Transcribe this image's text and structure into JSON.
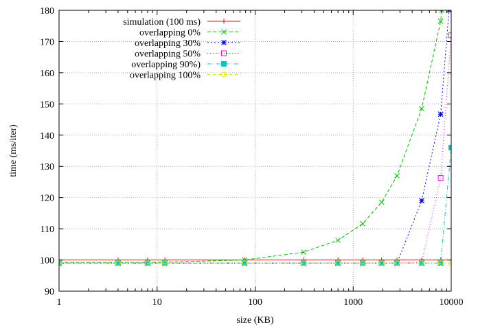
{
  "chart_data": {
    "type": "line",
    "xlabel": "size (KB)",
    "ylabel": "time (ms/iter)",
    "xscale": "log",
    "xlim": [
      1,
      10000
    ],
    "ylim": [
      90,
      180
    ],
    "x_ticks": [
      1,
      10,
      100,
      1000,
      10000
    ],
    "x_tick_labels": [
      "1",
      "10",
      "100",
      "1000",
      "10000"
    ],
    "y_ticks": [
      90,
      100,
      110,
      120,
      130,
      140,
      150,
      160,
      170,
      180
    ],
    "y_tick_labels": [
      "90",
      "100",
      "110",
      "120",
      "130",
      "140",
      "150",
      "160",
      "170",
      "180"
    ],
    "grid": true,
    "legend_position": "top-left",
    "series": [
      {
        "name": "simulation (100 ms)",
        "color": "#ff0000",
        "dash": "",
        "marker": "plus",
        "points": [
          [
            1,
            100
          ],
          [
            4,
            100
          ],
          [
            8,
            100
          ],
          [
            12,
            100
          ],
          [
            78,
            100
          ],
          [
            312,
            100
          ],
          [
            700,
            100
          ],
          [
            1250,
            100
          ],
          [
            1950,
            100
          ],
          [
            2800,
            100
          ],
          [
            5000,
            100
          ],
          [
            7800,
            100
          ],
          [
            10000,
            100
          ]
        ]
      },
      {
        "name": "overlapping 0%",
        "color": "#00c000",
        "dash": "5,3",
        "marker": "x",
        "points": [
          [
            1,
            99.2
          ],
          [
            4,
            99.2
          ],
          [
            8,
            99.2
          ],
          [
            12,
            99.3
          ],
          [
            78,
            100
          ],
          [
            312,
            102.5
          ],
          [
            700,
            106.3
          ],
          [
            1250,
            111.6
          ],
          [
            1950,
            118.5
          ],
          [
            2800,
            127
          ],
          [
            5000,
            148.5
          ],
          [
            7800,
            176.5
          ],
          [
            8000,
            180
          ]
        ]
      },
      {
        "name": "overlapping 30%",
        "color": "#0000ff",
        "dash": "2,3",
        "marker": "asterisk",
        "points": [
          [
            1,
            99
          ],
          [
            4,
            99
          ],
          [
            8,
            99
          ],
          [
            12,
            99
          ],
          [
            78,
            99
          ],
          [
            312,
            99
          ],
          [
            700,
            99
          ],
          [
            1250,
            99
          ],
          [
            1950,
            99
          ],
          [
            2800,
            99
          ],
          [
            5000,
            119
          ],
          [
            7800,
            146.7
          ],
          [
            9500,
            180
          ]
        ]
      },
      {
        "name": "overlapping 50%",
        "color": "#ff00ff",
        "dash": "1,3",
        "marker": "box",
        "points": [
          [
            1,
            99
          ],
          [
            4,
            99
          ],
          [
            8,
            99
          ],
          [
            12,
            99
          ],
          [
            78,
            99
          ],
          [
            312,
            99
          ],
          [
            700,
            99
          ],
          [
            1250,
            99
          ],
          [
            1950,
            99
          ],
          [
            2800,
            99
          ],
          [
            5000,
            99.3
          ],
          [
            7800,
            126.3
          ],
          [
            10000,
            172
          ]
        ]
      },
      {
        "name": "overlapping 90%)",
        "color": "#00c8c8",
        "dash": "6,3,1,3",
        "marker": "filled-box",
        "points": [
          [
            1,
            99
          ],
          [
            4,
            99
          ],
          [
            8,
            99
          ],
          [
            12,
            99
          ],
          [
            78,
            99
          ],
          [
            312,
            99
          ],
          [
            700,
            99
          ],
          [
            1250,
            99
          ],
          [
            1950,
            99
          ],
          [
            2800,
            99
          ],
          [
            5000,
            99
          ],
          [
            7800,
            99
          ],
          [
            10000,
            136
          ]
        ]
      },
      {
        "name": "overlapping 100%",
        "color": "#e6e600",
        "dash": "4,4",
        "marker": "circle",
        "points": [
          [
            1,
            99
          ],
          [
            4,
            99
          ],
          [
            8,
            99
          ],
          [
            12,
            99
          ],
          [
            78,
            99
          ],
          [
            312,
            99
          ],
          [
            700,
            99
          ],
          [
            1250,
            99
          ],
          [
            1950,
            99
          ],
          [
            2800,
            99
          ],
          [
            5000,
            99
          ],
          [
            7800,
            99
          ],
          [
            10000,
            99
          ]
        ]
      }
    ]
  }
}
